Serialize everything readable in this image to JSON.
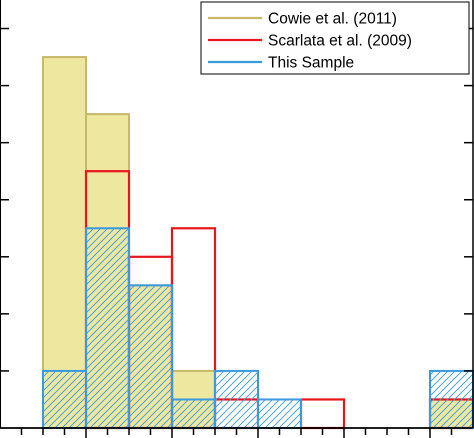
{
  "chart_data": {
    "type": "bar",
    "x_bins": [
      [
        0.5,
        1.0
      ],
      [
        1.0,
        1.5
      ],
      [
        1.5,
        2.0
      ],
      [
        2.0,
        2.5
      ],
      [
        2.5,
        3.0
      ],
      [
        3.0,
        3.5
      ],
      [
        3.5,
        4.0
      ],
      [
        4.0,
        4.5
      ],
      [
        4.5,
        5.0
      ],
      [
        5.0,
        5.5
      ]
    ],
    "xlim": [
      0.0,
      5.5
    ],
    "ylim": [
      0,
      7.5
    ],
    "x_minor_step": 0.25,
    "x_major_step": 1.0,
    "y_tick_step": 1,
    "series": [
      {
        "name": "Cowie et al. (2011)",
        "color": "#c8b86a",
        "fill": "#eee7a0",
        "style": "filled",
        "values": [
          6.5,
          5.5,
          2.5,
          1.0,
          0,
          0,
          0,
          0,
          0,
          0.5
        ]
      },
      {
        "name": "Scarlata et al. (2009)",
        "color": "#e8151b",
        "style": "outline",
        "values": [
          0,
          4.5,
          3.0,
          3.5,
          0.5,
          0,
          0.5,
          0,
          0,
          0.5
        ]
      },
      {
        "name": "This Sample",
        "color": "#3a9ae0",
        "style": "hatched",
        "values": [
          1.0,
          3.5,
          2.5,
          0.5,
          1.0,
          0.5,
          0,
          0,
          0,
          1.0
        ]
      }
    ],
    "legend_position": "top-right",
    "grid": false
  }
}
